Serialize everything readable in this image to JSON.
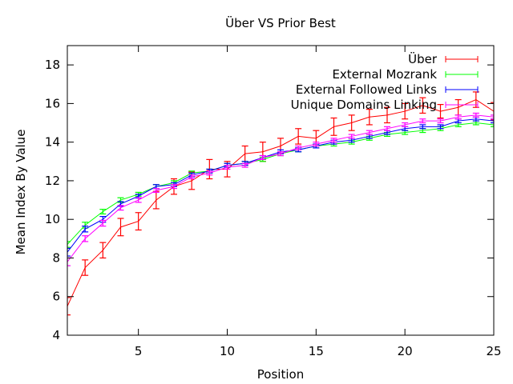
{
  "chart_data": {
    "type": "line",
    "title": "Über VS Prior Best",
    "xlabel": "Position",
    "ylabel": "Mean Index By Value",
    "xlim": [
      1,
      25
    ],
    "ylim": [
      4,
      19
    ],
    "xticks": [
      5,
      10,
      15,
      20,
      25
    ],
    "yticks": [
      4,
      6,
      8,
      10,
      12,
      14,
      16,
      18
    ],
    "grid": false,
    "legend_position": "top-right",
    "error_bars": true,
    "x": [
      1,
      2,
      3,
      4,
      5,
      6,
      7,
      8,
      9,
      10,
      11,
      12,
      13,
      14,
      15,
      16,
      17,
      18,
      19,
      20,
      21,
      22,
      23,
      24,
      25
    ],
    "series": [
      {
        "name": "Über",
        "color": "#ff0000",
        "values": [
          5.5,
          7.5,
          8.4,
          9.6,
          9.9,
          11.0,
          11.7,
          12.0,
          12.6,
          12.6,
          13.4,
          13.5,
          13.8,
          14.3,
          14.2,
          14.8,
          15.0,
          15.3,
          15.4,
          15.6,
          15.9,
          15.6,
          15.8,
          16.2,
          15.6
        ],
        "errors": [
          0.45,
          0.4,
          0.4,
          0.45,
          0.45,
          0.45,
          0.4,
          0.45,
          0.5,
          0.4,
          0.4,
          0.5,
          0.4,
          0.4,
          0.4,
          0.45,
          0.4,
          0.4,
          0.4,
          0.4,
          0.4,
          0.35,
          0.4,
          0.4,
          0.45
        ]
      },
      {
        "name": "External Mozrank",
        "color": "#00ff00",
        "values": [
          8.7,
          9.7,
          10.4,
          11.0,
          11.3,
          11.7,
          11.9,
          12.4,
          12.5,
          12.8,
          12.9,
          13.1,
          13.4,
          13.6,
          13.8,
          13.9,
          14.0,
          14.2,
          14.4,
          14.5,
          14.6,
          14.7,
          14.9,
          15.0,
          14.9
        ],
        "errors": [
          0.15,
          0.15,
          0.12,
          0.12,
          0.1,
          0.1,
          0.1,
          0.1,
          0.1,
          0.1,
          0.1,
          0.1,
          0.1,
          0.1,
          0.1,
          0.1,
          0.1,
          0.1,
          0.1,
          0.1,
          0.1,
          0.1,
          0.1,
          0.1,
          0.1
        ]
      },
      {
        "name": "External Followed Links",
        "color": "#0000ff",
        "values": [
          8.3,
          9.5,
          10.0,
          10.8,
          11.2,
          11.7,
          11.8,
          12.3,
          12.5,
          12.8,
          12.9,
          13.2,
          13.5,
          13.6,
          13.8,
          14.0,
          14.1,
          14.3,
          14.5,
          14.7,
          14.8,
          14.8,
          15.1,
          15.2,
          15.1
        ],
        "errors": [
          0.2,
          0.15,
          0.15,
          0.12,
          0.1,
          0.1,
          0.1,
          0.1,
          0.1,
          0.1,
          0.1,
          0.1,
          0.1,
          0.1,
          0.1,
          0.1,
          0.1,
          0.1,
          0.1,
          0.1,
          0.1,
          0.1,
          0.1,
          0.1,
          0.1
        ]
      },
      {
        "name": "Unique Domains Linking",
        "color": "#ff00ff",
        "values": [
          7.8,
          9.0,
          9.8,
          10.6,
          11.0,
          11.5,
          11.7,
          12.2,
          12.4,
          12.7,
          12.8,
          13.2,
          13.4,
          13.7,
          13.9,
          14.1,
          14.3,
          14.5,
          14.7,
          14.9,
          15.1,
          15.1,
          15.3,
          15.4,
          15.3
        ],
        "errors": [
          0.2,
          0.15,
          0.15,
          0.12,
          0.12,
          0.1,
          0.1,
          0.1,
          0.1,
          0.1,
          0.1,
          0.1,
          0.1,
          0.1,
          0.1,
          0.1,
          0.1,
          0.1,
          0.1,
          0.1,
          0.1,
          0.1,
          0.1,
          0.1,
          0.1
        ]
      }
    ]
  }
}
